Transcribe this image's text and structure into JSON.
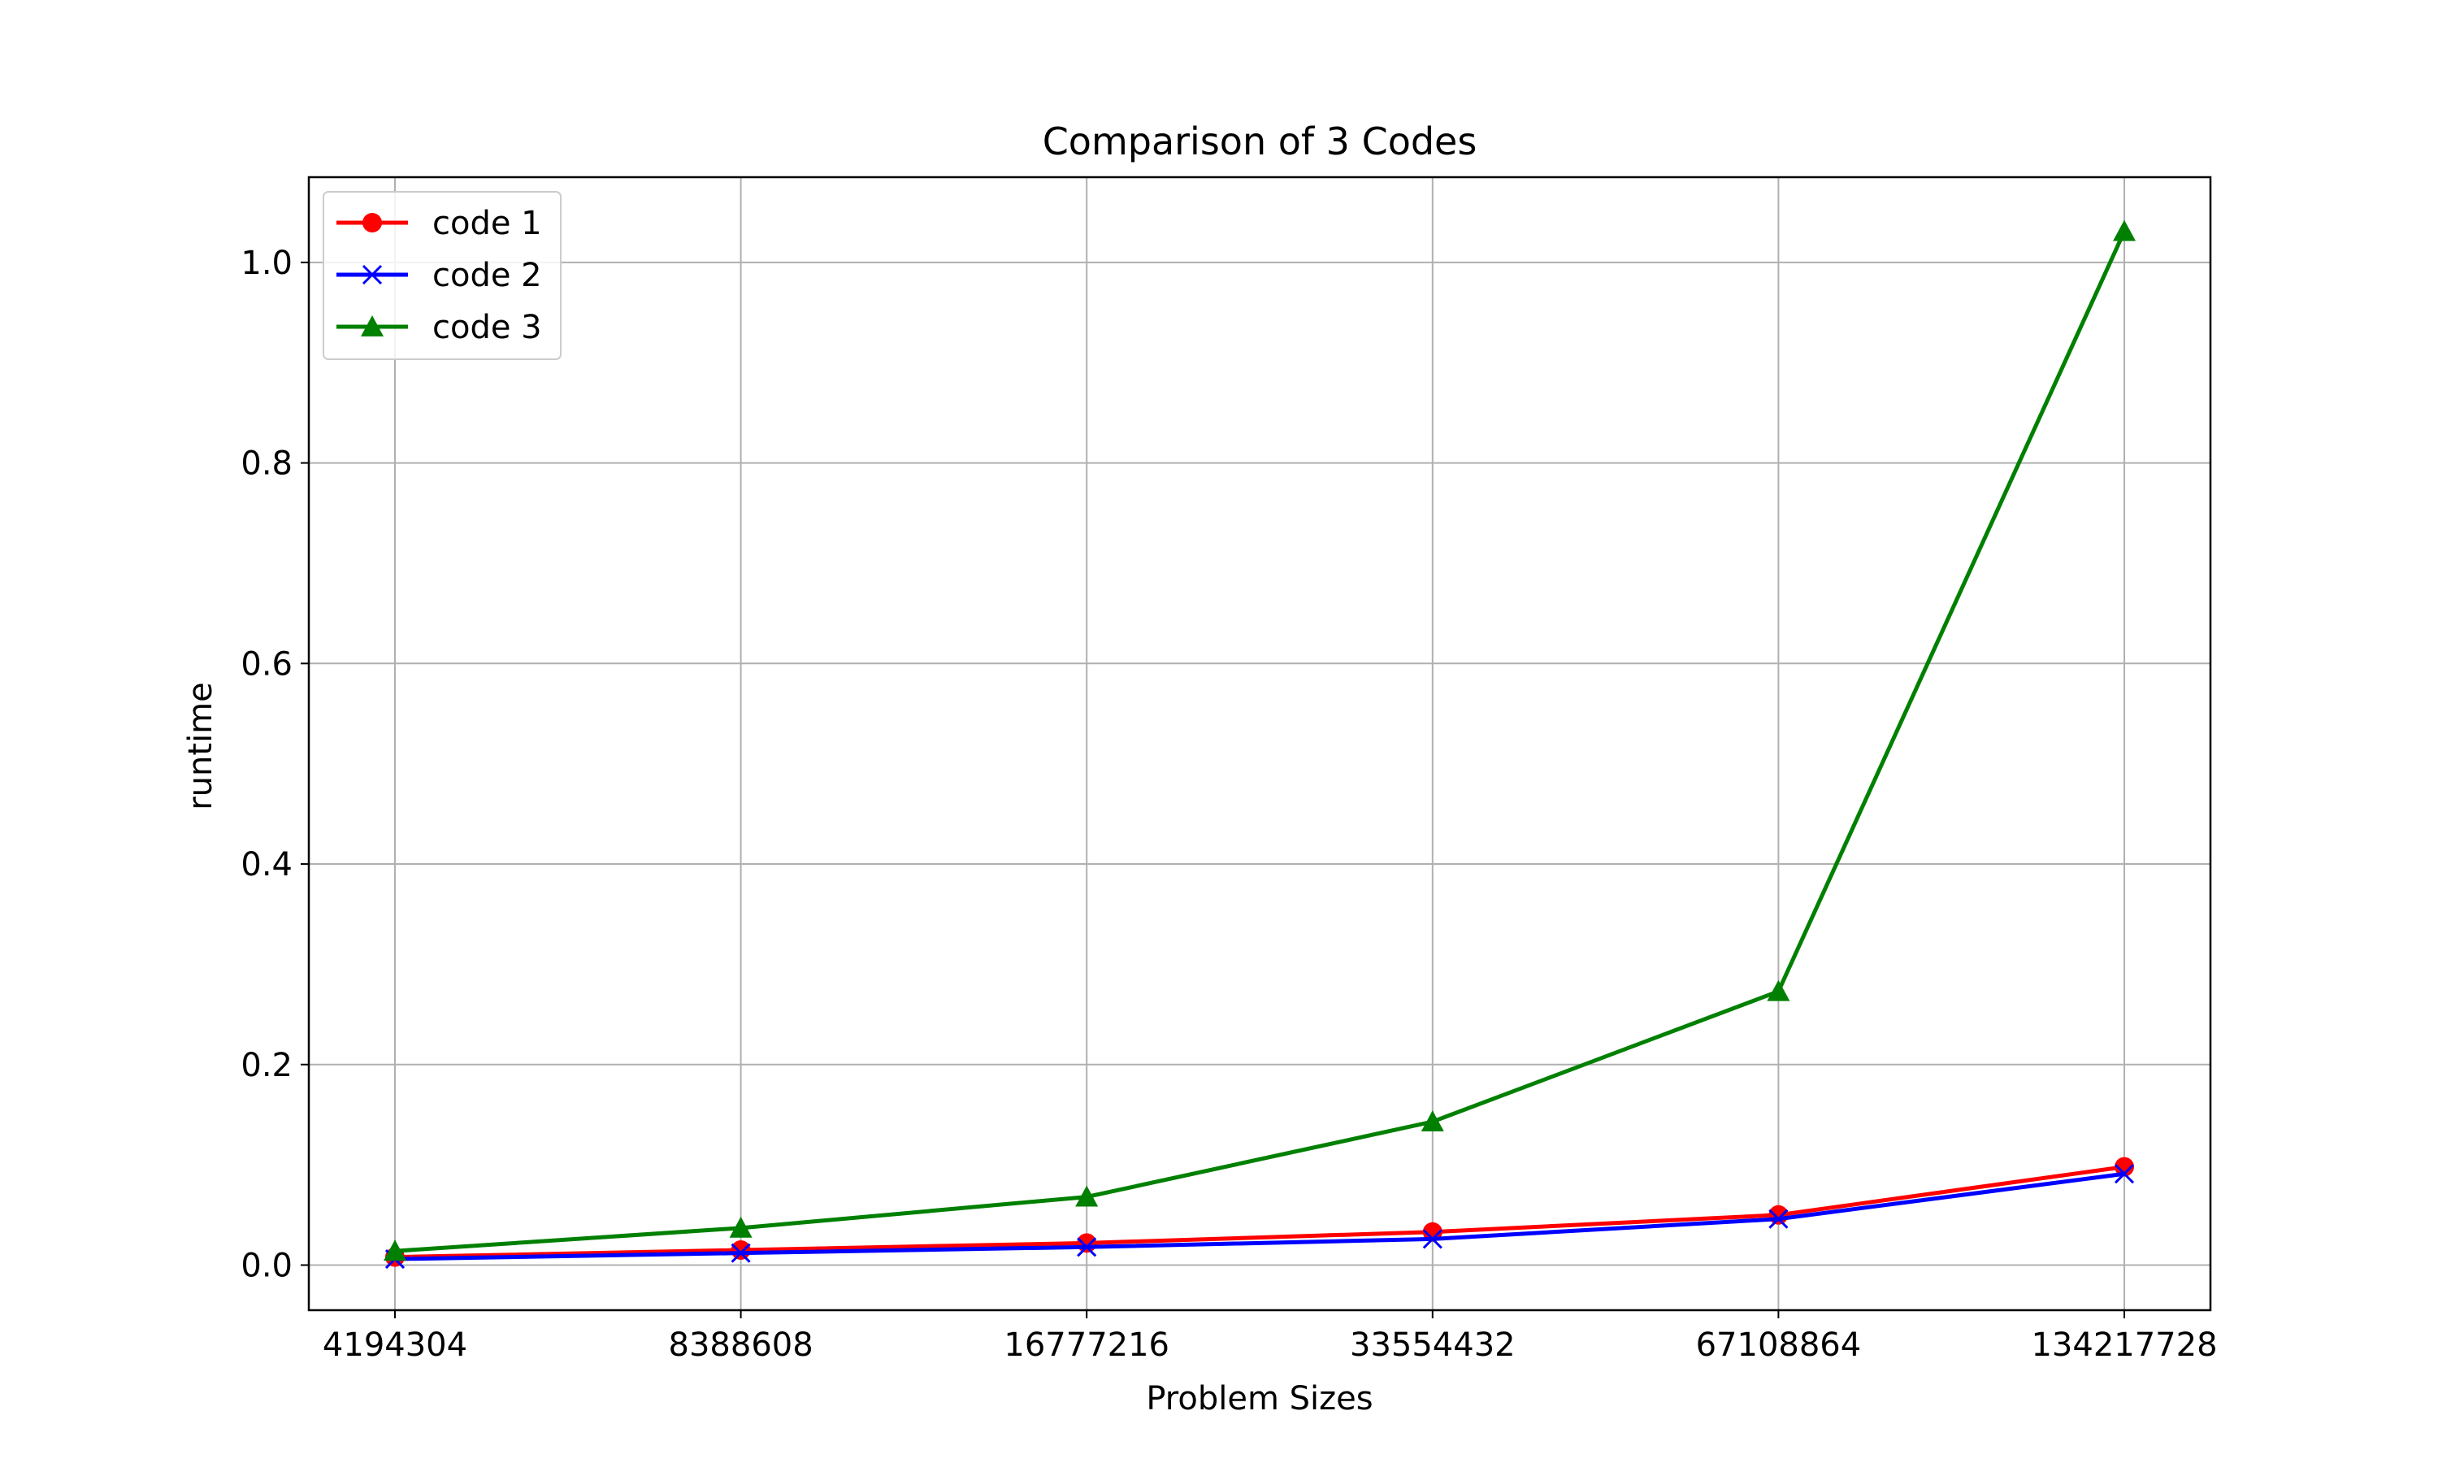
{
  "chart_data": {
    "type": "line",
    "title": "Comparison of 3 Codes",
    "xlabel": "Problem Sizes",
    "ylabel": "runtime",
    "categories": [
      "4194304",
      "8388608",
      "16777216",
      "33554432",
      "67108864",
      "134217728"
    ],
    "ylim": [
      -0.045,
      1.085
    ],
    "yticks": [
      0.0,
      0.2,
      0.4,
      0.6,
      0.8,
      1.0
    ],
    "ytick_labels": [
      "0.0",
      "0.2",
      "0.4",
      "0.6",
      "0.8",
      "1.0"
    ],
    "grid": true,
    "legend_position": "upper left",
    "series": [
      {
        "name": "code 1",
        "color": "#ff0000",
        "marker": "circle",
        "values": [
          0.008,
          0.015,
          0.022,
          0.033,
          0.05,
          0.098
        ]
      },
      {
        "name": "code 2",
        "color": "#0000ff",
        "marker": "x",
        "values": [
          0.006,
          0.012,
          0.018,
          0.026,
          0.046,
          0.091
        ]
      },
      {
        "name": "code 3",
        "color": "#008000",
        "marker": "triangle",
        "values": [
          0.014,
          0.037,
          0.068,
          0.143,
          0.273,
          1.031
        ]
      }
    ]
  }
}
